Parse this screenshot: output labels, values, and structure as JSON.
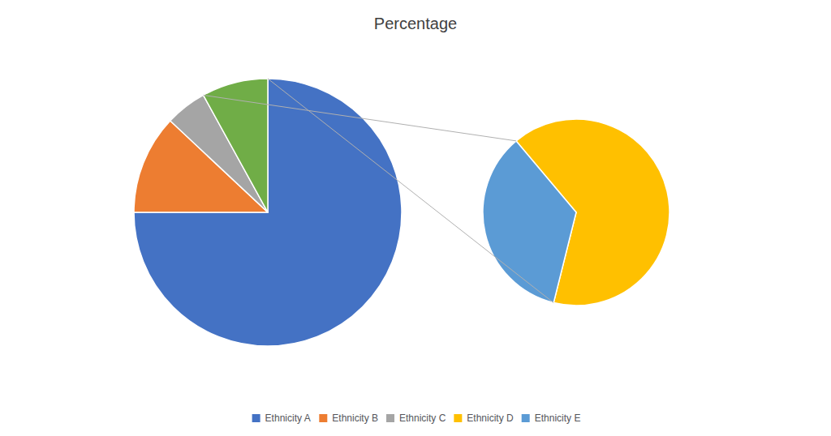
{
  "chart_data": [
    {
      "type": "pie",
      "title": "Percentage",
      "legend": "bottom",
      "categories": [
        "Ethnicity A",
        "Ethnicity B",
        "Ethnicity C",
        null
      ],
      "values": [
        75,
        12,
        5,
        8
      ],
      "colors": [
        "#4472c4",
        "#ed7d31",
        "#a5a5a5",
        "#70ad47"
      ]
    },
    {
      "type": "pie",
      "categories": [
        "Ethnicity D",
        "Ethnicity E"
      ],
      "values": [
        65,
        35
      ],
      "colors": [
        "#ffc000",
        "#5b9bd5"
      ]
    }
  ]
}
